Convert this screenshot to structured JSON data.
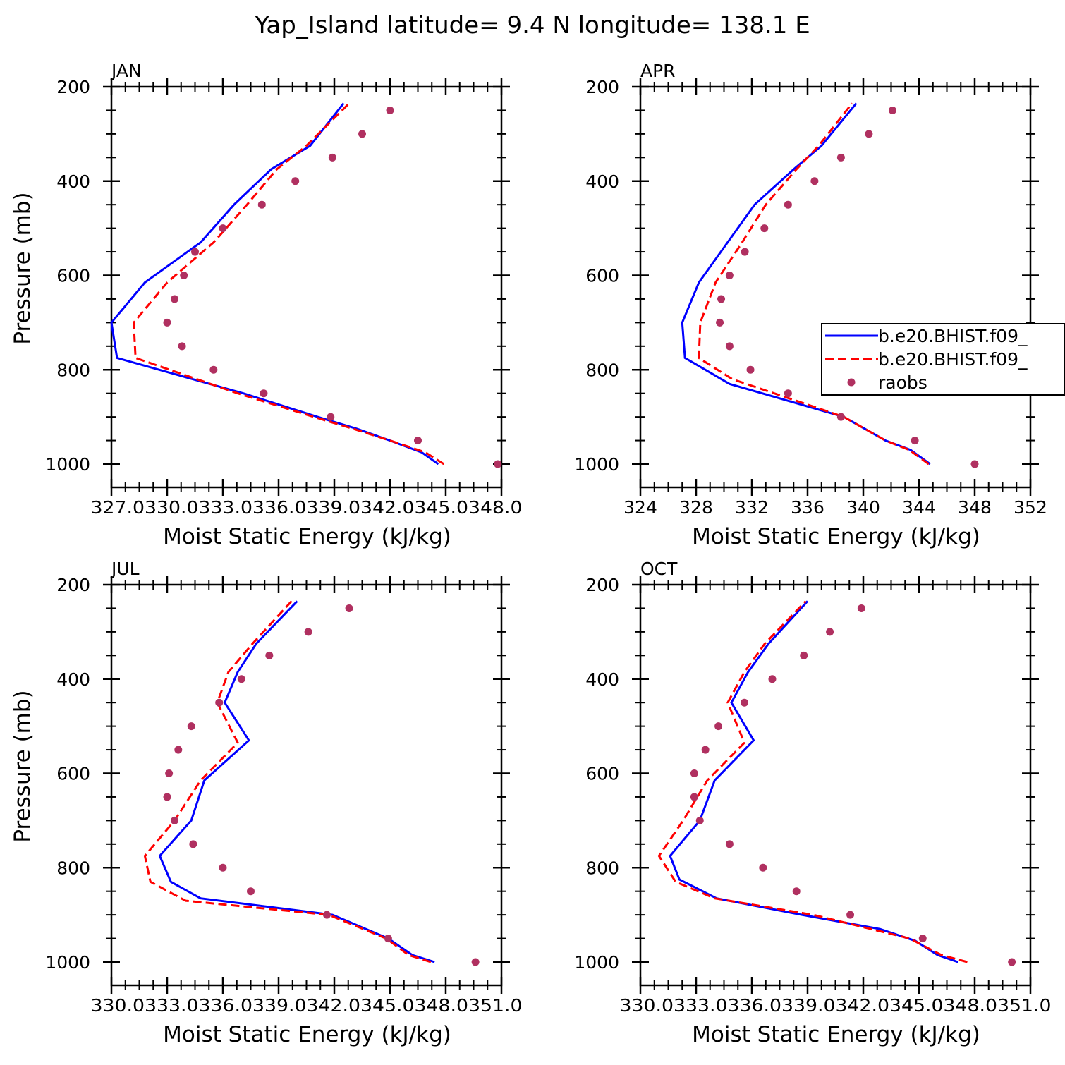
{
  "title": "Yap_Island  latitude= 9.4 N longitude= 138.1 E",
  "colors": {
    "series1": "#0000ff",
    "series2": "#ff0000",
    "obs": "#b03060"
  },
  "legend": {
    "placement": "right, inside APR panel",
    "entries": [
      "b.e20.BHIST.f09_",
      "b.e20.BHIST.f09_",
      "raobs"
    ]
  },
  "chart_data": [
    {
      "type": "line",
      "title": "JAN",
      "xlabel": "Moist Static Energy (kJ/kg)",
      "ylabel": "Pressure (mb)",
      "xlim": [
        327,
        348
      ],
      "ylim": [
        1000,
        200
      ],
      "xticks": [
        327,
        330,
        333,
        336,
        339,
        342,
        345,
        348
      ],
      "xticklabels": [
        "327.0",
        "330.0",
        "333.0",
        "336.0",
        "339.0",
        "342.0",
        "345.0",
        "348.0"
      ],
      "xticklabel_text": "327.0330.0333.0336.0339.0342.0345.0348.0",
      "yticks": [
        200,
        400,
        600,
        800,
        1000
      ],
      "yticklabels": [
        "200",
        "400",
        "600",
        "800",
        "1000"
      ],
      "series": [
        {
          "name": "b.e20.BHIST.f09_",
          "style": "solid",
          "p": [
            1000,
            975,
            950,
            925,
            900,
            850,
            775,
            700,
            615,
            530,
            450,
            375,
            325,
            235
          ],
          "mse": [
            344.6,
            343.7,
            342.0,
            340.2,
            338.1,
            334.1,
            327.3,
            327.0,
            328.8,
            331.8,
            333.6,
            335.6,
            337.7,
            339.5
          ]
        },
        {
          "name": "b.e20.BHIST.f09_",
          "style": "dashed",
          "p": [
            1000,
            975,
            950,
            925,
            900,
            850,
            775,
            700,
            615,
            530,
            450,
            375,
            325,
            235
          ],
          "mse": [
            344.9,
            343.9,
            342.0,
            340.0,
            337.9,
            333.8,
            328.3,
            328.2,
            330.0,
            332.5,
            334.3,
            335.9,
            337.5,
            339.8
          ]
        },
        {
          "name": "raobs",
          "style": "points",
          "p": [
            1000,
            950,
            900,
            850,
            800,
            750,
            700,
            650,
            600,
            550,
            500,
            450,
            400,
            350,
            300,
            250
          ],
          "mse": [
            347.8,
            343.5,
            338.8,
            335.2,
            332.5,
            330.8,
            330.0,
            330.4,
            330.9,
            331.5,
            333.0,
            335.1,
            336.9,
            338.9,
            340.5,
            342.0
          ]
        }
      ]
    },
    {
      "type": "line",
      "title": "APR",
      "xlabel": "Moist Static Energy (kJ/kg)",
      "ylabel": "",
      "xlim": [
        324,
        352
      ],
      "ylim": [
        1000,
        200
      ],
      "xticks": [
        324,
        328,
        332,
        336,
        340,
        344,
        348,
        352
      ],
      "xticklabels": [
        "324",
        "328",
        "332",
        "336",
        "340",
        "344",
        "348",
        "352"
      ],
      "yticks": [
        200,
        400,
        600,
        800,
        1000
      ],
      "yticklabels": [
        "200",
        "400",
        "600",
        "800",
        "1000"
      ],
      "series": [
        {
          "name": "b.e20.BHIST.f09_",
          "style": "solid",
          "p": [
            1000,
            970,
            950,
            900,
            830,
            775,
            700,
            615,
            450,
            375,
            325,
            235
          ],
          "mse": [
            344.8,
            343.4,
            341.6,
            338.6,
            330.4,
            327.2,
            327.0,
            328.2,
            332.2,
            335.0,
            337.0,
            339.5
          ]
        },
        {
          "name": "b.e20.BHIST.f09_",
          "style": "dashed",
          "p": [
            1000,
            970,
            950,
            900,
            820,
            775,
            700,
            615,
            530,
            450,
            375,
            325,
            235
          ],
          "mse": [
            344.7,
            343.3,
            341.6,
            338.6,
            330.6,
            328.2,
            328.3,
            329.4,
            331.3,
            333.0,
            335.2,
            336.8,
            339.2
          ]
        },
        {
          "name": "raobs",
          "style": "points",
          "p": [
            1000,
            950,
            900,
            850,
            800,
            750,
            700,
            650,
            600,
            550,
            500,
            450,
            400,
            350,
            300,
            250
          ],
          "mse": [
            348.0,
            343.7,
            338.4,
            334.6,
            331.9,
            330.4,
            329.7,
            329.8,
            330.4,
            331.5,
            332.9,
            334.6,
            336.5,
            338.4,
            340.4,
            342.1
          ]
        }
      ]
    },
    {
      "type": "line",
      "title": "JUL",
      "xlabel": "Moist Static Energy (kJ/kg)",
      "ylabel": "Pressure (mb)",
      "xlim": [
        330,
        351
      ],
      "ylim": [
        1000,
        200
      ],
      "xticks": [
        330,
        333,
        336,
        339,
        342,
        345,
        348,
        351
      ],
      "xticklabels": [
        "330.0",
        "333.0",
        "336.0",
        "339.0",
        "342.0",
        "345.0",
        "348.0",
        "351.0"
      ],
      "xticklabel_text": "330.0333.0336.0339.0342.0345.0348.0351.0",
      "yticks": [
        200,
        400,
        600,
        800,
        1000
      ],
      "yticklabels": [
        "200",
        "400",
        "600",
        "800",
        "1000"
      ],
      "series": [
        {
          "name": "b.e20.BHIST.f09_",
          "style": "solid",
          "p": [
            1000,
            985,
            950,
            900,
            865,
            830,
            775,
            700,
            615,
            530,
            450,
            385,
            325,
            235
          ],
          "mse": [
            347.4,
            346.2,
            344.9,
            341.9,
            334.8,
            333.2,
            332.6,
            334.3,
            335.0,
            337.4,
            336.1,
            336.8,
            337.8,
            340.0
          ]
        },
        {
          "name": "b.e20.BHIST.f09_",
          "style": "dashed",
          "p": [
            1000,
            985,
            950,
            900,
            870,
            830,
            775,
            700,
            615,
            535,
            450,
            385,
            325,
            235
          ],
          "mse": [
            347.2,
            346.0,
            344.8,
            341.7,
            334.0,
            332.1,
            331.8,
            333.4,
            334.8,
            336.8,
            335.7,
            336.3,
            337.6,
            339.7
          ]
        },
        {
          "name": "raobs",
          "style": "points",
          "p": [
            1000,
            950,
            900,
            850,
            800,
            750,
            700,
            650,
            600,
            550,
            500,
            450,
            400,
            350,
            300,
            250
          ],
          "mse": [
            349.6,
            344.9,
            341.6,
            337.5,
            336.0,
            334.4,
            333.4,
            333.0,
            333.1,
            333.6,
            334.3,
            335.8,
            337.0,
            338.5,
            340.6,
            342.8
          ]
        }
      ]
    },
    {
      "type": "line",
      "title": "OCT",
      "xlabel": "Moist Static Energy (kJ/kg)",
      "ylabel": "",
      "xlim": [
        330,
        351
      ],
      "ylim": [
        1000,
        200
      ],
      "xticks": [
        330,
        333,
        336,
        339,
        342,
        345,
        348,
        351
      ],
      "xticklabels": [
        "330.0",
        "333.0",
        "336.0",
        "339.0",
        "342.0",
        "345.0",
        "348.0",
        "351.0"
      ],
      "xticklabel_text": "330.0333.0336.0339.0342.0345.0348.0351.0",
      "yticks": [
        200,
        400,
        600,
        800,
        1000
      ],
      "yticklabels": [
        "200",
        "400",
        "600",
        "800",
        "1000"
      ],
      "series": [
        {
          "name": "b.e20.BHIST.f09_",
          "style": "solid",
          "p": [
            1000,
            985,
            955,
            930,
            900,
            865,
            825,
            775,
            700,
            615,
            530,
            450,
            385,
            325,
            235
          ],
          "mse": [
            347.1,
            346.0,
            344.8,
            342.9,
            338.7,
            334.1,
            332.1,
            331.6,
            333.2,
            334.0,
            336.1,
            334.9,
            335.8,
            336.9,
            339.0
          ]
        },
        {
          "name": "b.e20.BHIST.f09_",
          "style": "dashed",
          "p": [
            1000,
            985,
            950,
            900,
            865,
            830,
            775,
            700,
            615,
            535,
            450,
            385,
            325,
            235
          ],
          "mse": [
            347.6,
            346.2,
            344.5,
            339.3,
            334.0,
            331.9,
            331.0,
            332.3,
            333.6,
            335.6,
            334.7,
            335.6,
            336.7,
            338.9
          ]
        },
        {
          "name": "raobs",
          "style": "points",
          "p": [
            1000,
            950,
            900,
            850,
            800,
            750,
            700,
            650,
            600,
            550,
            500,
            450,
            400,
            350,
            300,
            250
          ],
          "mse": [
            350.0,
            345.2,
            341.3,
            338.4,
            336.6,
            334.8,
            333.2,
            332.9,
            332.9,
            333.5,
            334.2,
            335.6,
            337.1,
            338.8,
            340.2,
            341.9
          ]
        }
      ]
    }
  ]
}
